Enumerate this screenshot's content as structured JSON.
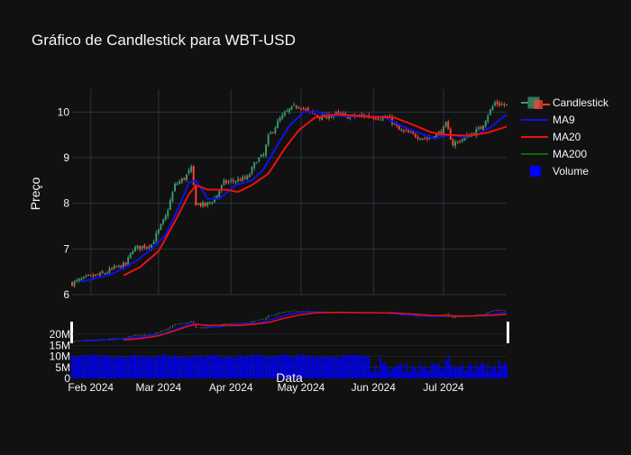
{
  "chart_data": {
    "type": "candlestick",
    "title": "Gráfico de Candlestick para WBT-USD",
    "xlabel": "Data",
    "ylabel": "Preço",
    "ylim": [
      6,
      10.5
    ],
    "x_range": [
      "2024-01-24",
      "2024-07-28"
    ],
    "yticks": [
      "6",
      "7",
      "8",
      "9",
      "10"
    ],
    "volume_ticks": [
      "0",
      "5M",
      "10M",
      "15M",
      "20M"
    ],
    "volume_ylim": [
      0,
      20000000
    ],
    "xticks": [
      {
        "date": "2024-02-01",
        "label": "Feb 2024"
      },
      {
        "date": "2024-03-01",
        "label": "Mar 2024"
      },
      {
        "date": "2024-04-01",
        "label": "Apr 2024"
      },
      {
        "date": "2024-05-01",
        "label": "May 2024"
      },
      {
        "date": "2024-06-01",
        "label": "Jun 2024"
      },
      {
        "date": "2024-07-01",
        "label": "Jul 2024"
      }
    ],
    "close_anchors": [
      [
        "2024-01-24",
        6.25
      ],
      [
        "2024-01-31",
        6.38
      ],
      [
        "2024-02-06",
        6.45
      ],
      [
        "2024-02-12",
        6.6
      ],
      [
        "2024-02-16",
        6.65
      ],
      [
        "2024-02-19",
        7.0
      ],
      [
        "2024-02-23",
        7.05
      ],
      [
        "2024-02-27",
        7.1
      ],
      [
        "2024-03-04",
        7.7
      ],
      [
        "2024-03-08",
        8.4
      ],
      [
        "2024-03-12",
        8.55
      ],
      [
        "2024-03-15",
        8.75
      ],
      [
        "2024-03-17",
        8.0
      ],
      [
        "2024-03-21",
        7.95
      ],
      [
        "2024-03-25",
        8.1
      ],
      [
        "2024-03-29",
        8.45
      ],
      [
        "2024-04-03",
        8.5
      ],
      [
        "2024-04-08",
        8.55
      ],
      [
        "2024-04-12",
        8.95
      ],
      [
        "2024-04-15",
        9.05
      ],
      [
        "2024-04-17",
        9.45
      ],
      [
        "2024-04-22",
        9.85
      ],
      [
        "2024-04-26",
        10.05
      ],
      [
        "2024-04-30",
        10.15
      ],
      [
        "2024-05-04",
        10.0
      ],
      [
        "2024-05-10",
        9.88
      ],
      [
        "2024-05-16",
        9.95
      ],
      [
        "2024-05-22",
        9.9
      ],
      [
        "2024-05-28",
        9.92
      ],
      [
        "2024-06-04",
        9.88
      ],
      [
        "2024-06-08",
        9.85
      ],
      [
        "2024-06-12",
        9.6
      ],
      [
        "2024-06-18",
        9.5
      ],
      [
        "2024-06-24",
        9.42
      ],
      [
        "2024-06-30",
        9.55
      ],
      [
        "2024-07-02",
        9.72
      ],
      [
        "2024-07-05",
        9.3
      ],
      [
        "2024-07-09",
        9.4
      ],
      [
        "2024-07-14",
        9.55
      ],
      [
        "2024-07-17",
        9.65
      ],
      [
        "2024-07-20",
        9.95
      ],
      [
        "2024-07-23",
        10.2
      ],
      [
        "2024-07-27",
        10.15
      ]
    ],
    "ma9_anchors": [
      [
        "2024-01-28",
        6.28
      ],
      [
        "2024-02-10",
        6.45
      ],
      [
        "2024-02-20",
        6.72
      ],
      [
        "2024-02-27",
        7.0
      ],
      [
        "2024-03-04",
        7.3
      ],
      [
        "2024-03-10",
        7.95
      ],
      [
        "2024-03-14",
        8.45
      ],
      [
        "2024-03-17",
        8.5
      ],
      [
        "2024-03-22",
        8.1
      ],
      [
        "2024-03-27",
        8.1
      ],
      [
        "2024-04-03",
        8.4
      ],
      [
        "2024-04-10",
        8.5
      ],
      [
        "2024-04-15",
        8.75
      ],
      [
        "2024-04-20",
        9.2
      ],
      [
        "2024-04-26",
        9.7
      ],
      [
        "2024-05-02",
        10.0
      ],
      [
        "2024-05-08",
        10.0
      ],
      [
        "2024-05-15",
        9.92
      ],
      [
        "2024-05-25",
        9.9
      ],
      [
        "2024-06-05",
        9.9
      ],
      [
        "2024-06-12",
        9.72
      ],
      [
        "2024-06-20",
        9.55
      ],
      [
        "2024-06-27",
        9.42
      ],
      [
        "2024-07-04",
        9.5
      ],
      [
        "2024-07-10",
        9.45
      ],
      [
        "2024-07-16",
        9.52
      ],
      [
        "2024-07-22",
        9.7
      ],
      [
        "2024-07-28",
        9.95
      ]
    ],
    "ma20_anchors": [
      [
        "2024-02-15",
        6.42
      ],
      [
        "2024-02-22",
        6.6
      ],
      [
        "2024-03-01",
        6.95
      ],
      [
        "2024-03-08",
        7.6
      ],
      [
        "2024-03-14",
        8.2
      ],
      [
        "2024-03-17",
        8.4
      ],
      [
        "2024-03-22",
        8.3
      ],
      [
        "2024-03-30",
        8.3
      ],
      [
        "2024-04-04",
        8.25
      ],
      [
        "2024-04-10",
        8.4
      ],
      [
        "2024-04-17",
        8.65
      ],
      [
        "2024-04-24",
        9.2
      ],
      [
        "2024-04-30",
        9.6
      ],
      [
        "2024-05-07",
        9.88
      ],
      [
        "2024-05-16",
        9.95
      ],
      [
        "2024-05-28",
        9.9
      ],
      [
        "2024-06-10",
        9.88
      ],
      [
        "2024-06-18",
        9.72
      ],
      [
        "2024-06-26",
        9.55
      ],
      [
        "2024-07-03",
        9.5
      ],
      [
        "2024-07-12",
        9.48
      ],
      [
        "2024-07-20",
        9.55
      ],
      [
        "2024-07-28",
        9.68
      ]
    ],
    "series": [
      {
        "name": "Candlestick",
        "color_up": "#3d9970",
        "color_down": "#ff4136"
      },
      {
        "name": "MA9",
        "color": "#1010ee"
      },
      {
        "name": "MA20",
        "color": "#ee1111"
      },
      {
        "name": "MA200",
        "color": "#0a6a0a"
      },
      {
        "name": "Volume",
        "color": "#0000ff"
      }
    ],
    "grid": true,
    "legend": "top-right"
  }
}
